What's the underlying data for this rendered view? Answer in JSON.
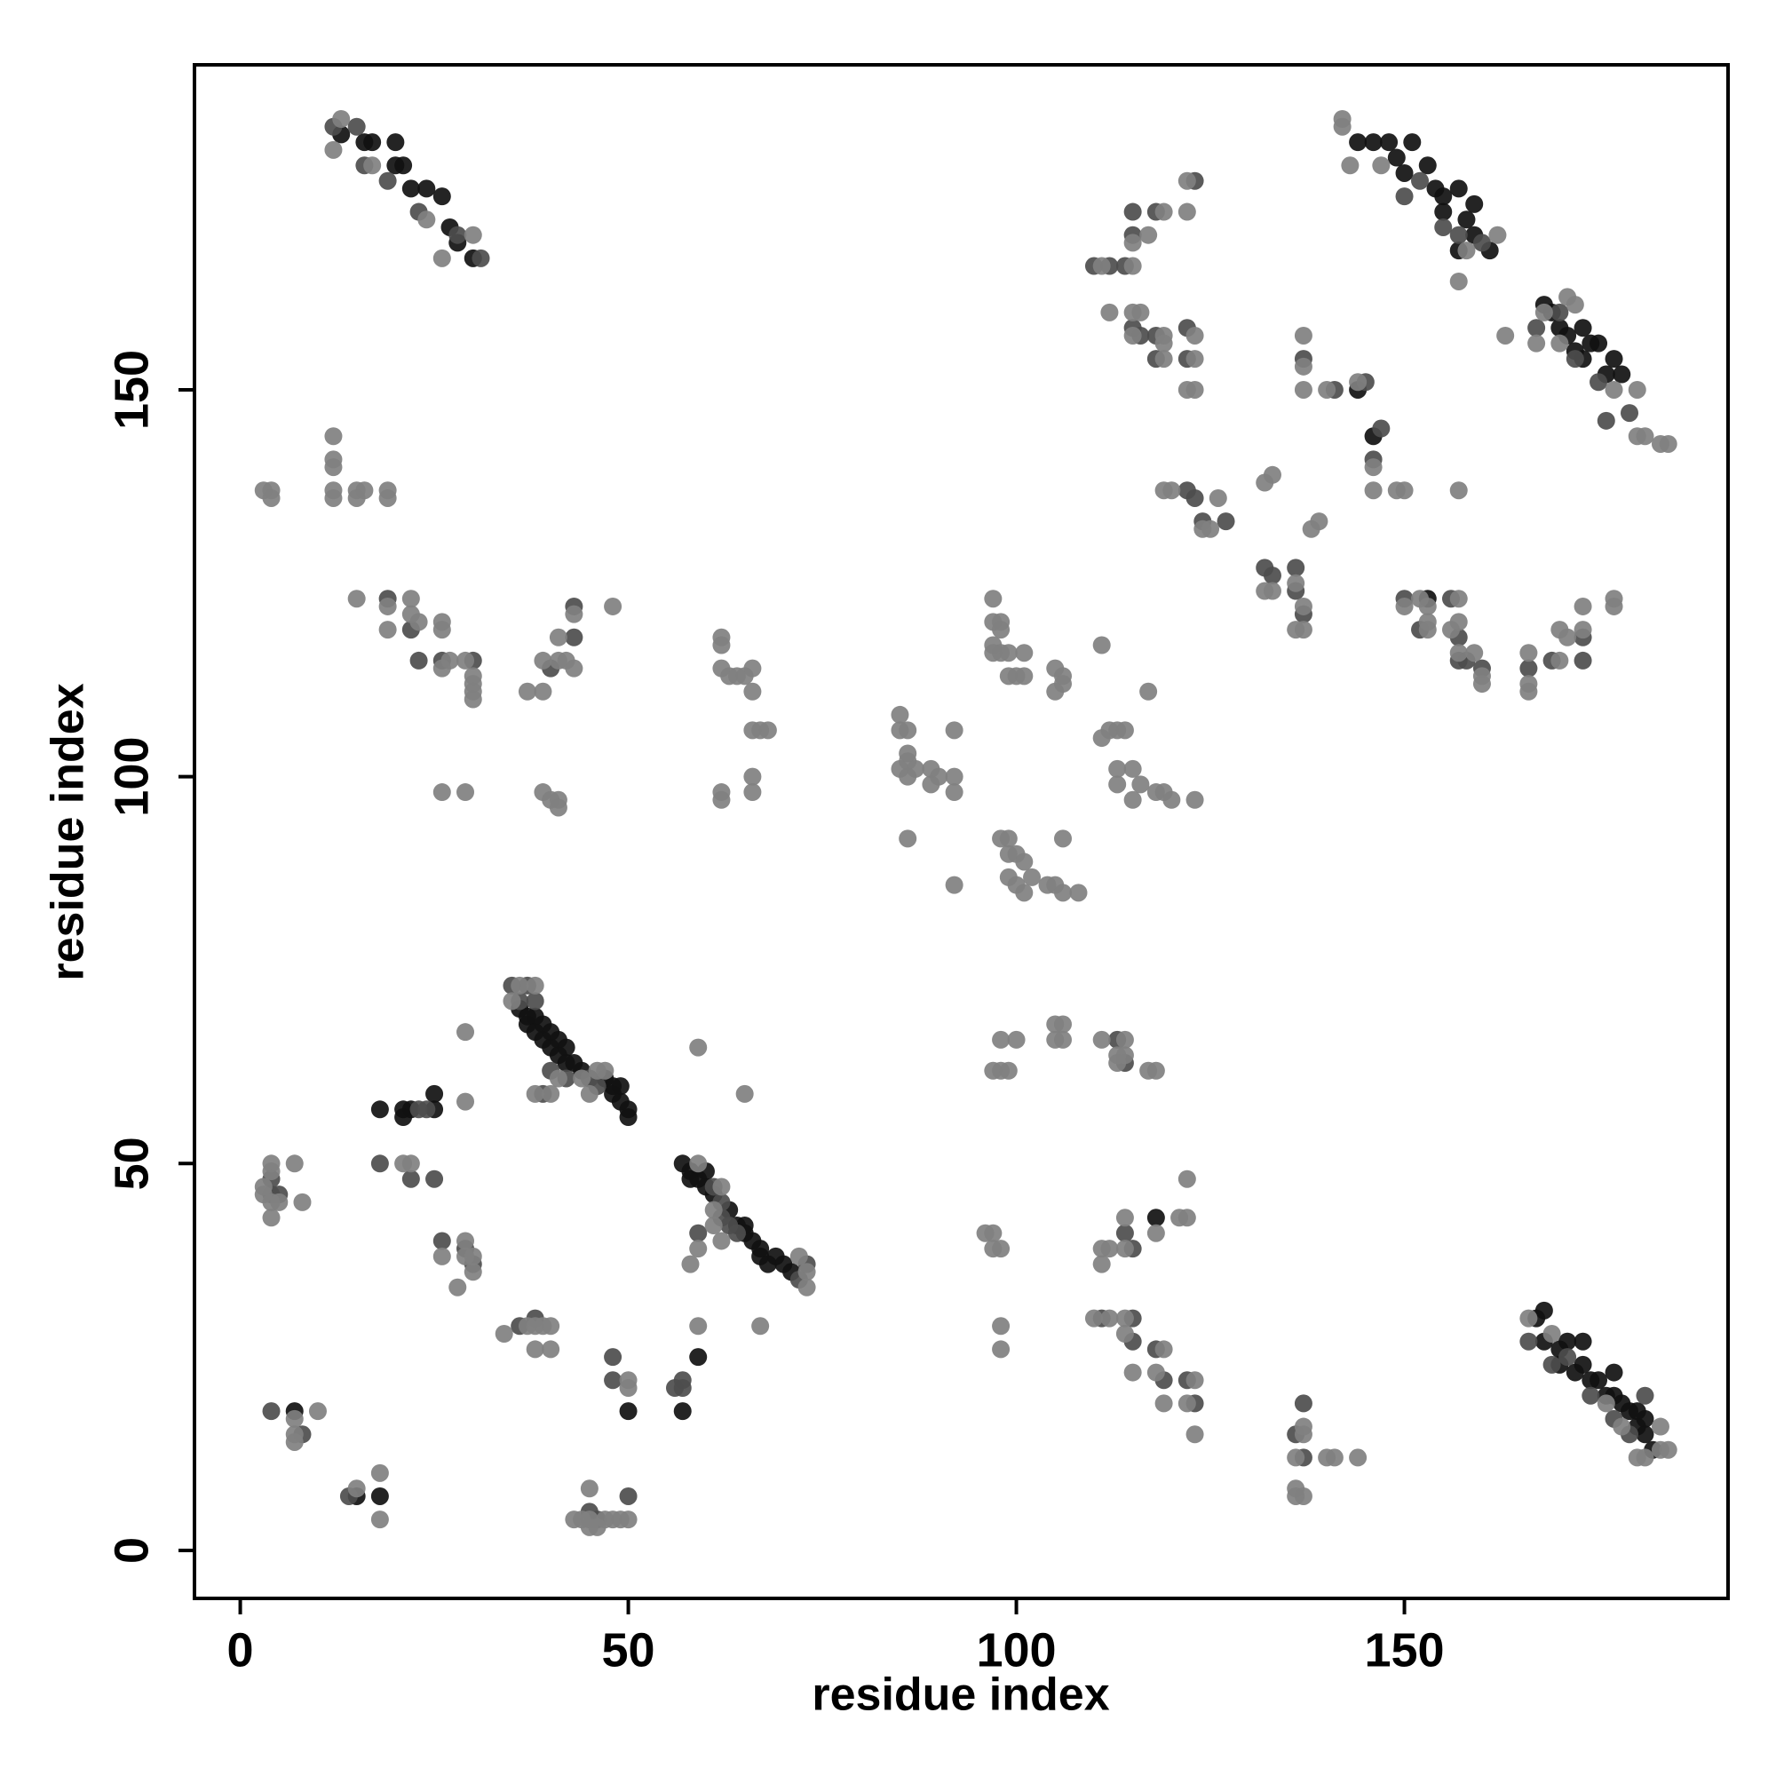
{
  "chart_data": {
    "type": "scatter",
    "xlabel": "residue index",
    "ylabel": "residue index",
    "xlim": [
      -5.9,
      191.7
    ],
    "ylim": [
      -6.2,
      192
    ],
    "xticks": [
      0,
      50,
      100,
      150
    ],
    "yticks": [
      0,
      50,
      100,
      150
    ],
    "series": [
      {
        "color": "#111111",
        "x": [
          13,
          16,
          17,
          20,
          20,
          21,
          22,
          24,
          26,
          27,
          28,
          30,
          36,
          37,
          37,
          38,
          38,
          39,
          39,
          40,
          40,
          41,
          41,
          42,
          42,
          43,
          44,
          47,
          48,
          48,
          49,
          49,
          50,
          50,
          18,
          21,
          22,
          21,
          25,
          25,
          57,
          58,
          58,
          59,
          60,
          60,
          61,
          63,
          64,
          65,
          65,
          66,
          67,
          67,
          68,
          69,
          70,
          71,
          7,
          18,
          15,
          57,
          59,
          50,
          144,
          146,
          148,
          150,
          149,
          151,
          153,
          154,
          155,
          157,
          155,
          158,
          159,
          159,
          161,
          157,
          168,
          169,
          170,
          171,
          172,
          173,
          174,
          175,
          177,
          178,
          176,
          173,
          144,
          146,
          153,
          118,
          167,
          168,
          168,
          170,
          171,
          170,
          172,
          173,
          173,
          174,
          175,
          176,
          177,
          178,
          179,
          180,
          181,
          181,
          182,
          177,
          180
        ],
        "y": [
          183,
          182,
          182,
          182,
          179,
          179,
          176,
          176,
          175,
          171,
          169,
          167,
          70,
          69,
          68,
          69,
          67,
          68,
          66,
          67,
          65,
          66,
          64,
          65,
          63,
          63,
          62,
          61,
          60,
          59,
          60,
          58,
          57,
          56,
          57,
          57,
          57,
          56,
          59,
          57,
          50,
          49,
          48,
          48,
          49,
          47,
          46,
          44,
          42,
          42,
          41,
          40,
          39,
          38,
          37,
          38,
          37,
          36,
          18,
          7,
          7,
          18,
          25,
          18,
          182,
          182,
          182,
          178,
          180,
          182,
          179,
          176,
          175,
          176,
          173,
          172,
          174,
          170,
          168,
          168,
          161,
          160,
          158,
          157,
          155,
          158,
          156,
          156,
          154,
          152,
          152,
          154,
          150,
          144,
          123,
          43,
          30,
          31,
          27,
          26,
          27,
          24,
          23,
          24,
          27,
          22,
          22,
          20,
          20,
          19,
          18,
          16,
          17,
          15,
          13,
          23,
          18
        ]
      },
      {
        "color": "#4d4d4d",
        "x": [
          12,
          15,
          16,
          19,
          23,
          28,
          31,
          19,
          22,
          23,
          26,
          30,
          43,
          43,
          40,
          35,
          37,
          36,
          38,
          39,
          40,
          42,
          45,
          46,
          24,
          23,
          22,
          25,
          18,
          61,
          62,
          62,
          63,
          64,
          59,
          72,
          73,
          4,
          5,
          4,
          4,
          8,
          14,
          45,
          46,
          48,
          48,
          50,
          57,
          56,
          57,
          26,
          29,
          30,
          36,
          38,
          110,
          112,
          114,
          115,
          115,
          118,
          115,
          116,
          118,
          118,
          122,
          122,
          123,
          141,
          137,
          145,
          150,
          152,
          155,
          157,
          160,
          167,
          170,
          172,
          175,
          179,
          176,
          122,
          123,
          124,
          127,
          132,
          133,
          136,
          136,
          137,
          147,
          146,
          150,
          152,
          156,
          157,
          157,
          158,
          160,
          166,
          169,
          173,
          173,
          113,
          114,
          114,
          115,
          111,
          115,
          115,
          118,
          119,
          122,
          123,
          136,
          137,
          137,
          166,
          169,
          171,
          174,
          177,
          179,
          181
        ],
        "y": [
          184,
          184,
          179,
          177,
          173,
          170,
          167,
          123,
          119,
          115,
          115,
          115,
          118,
          122,
          114,
          73,
          73,
          71,
          71,
          59,
          62,
          61,
          61,
          60,
          57,
          57,
          48,
          48,
          50,
          47,
          45,
          43,
          42,
          41,
          41,
          35,
          37,
          46,
          46,
          48,
          18,
          15,
          7,
          5,
          4,
          25,
          22,
          7,
          22,
          21,
          21,
          40,
          39,
          37,
          29,
          30,
          166,
          166,
          166,
          170,
          173,
          173,
          158,
          157,
          157,
          154,
          154,
          158,
          177,
          150,
          154,
          151,
          175,
          177,
          171,
          170,
          169,
          158,
          160,
          154,
          151,
          147,
          146,
          137,
          136,
          133,
          133,
          127,
          126,
          127,
          124,
          121,
          145,
          141,
          123,
          119,
          123,
          118,
          115,
          115,
          114,
          114,
          115,
          118,
          115,
          66,
          63,
          41,
          39,
          30,
          30,
          27,
          26,
          22,
          22,
          19,
          15,
          19,
          12,
          27,
          24,
          25,
          20,
          17,
          15,
          20
        ]
      },
      {
        "color": "#808080",
        "x": [
          13,
          12,
          17,
          24,
          26,
          30,
          3,
          4,
          4,
          12,
          12,
          12,
          12,
          12,
          15,
          15,
          16,
          19,
          19,
          15,
          19,
          19,
          22,
          22,
          23,
          26,
          26,
          26,
          27,
          29,
          30,
          30,
          30,
          30,
          37,
          39,
          39,
          41,
          41,
          42,
          43,
          43,
          48,
          26,
          29,
          39,
          40,
          41,
          41,
          62,
          62,
          62,
          63,
          64,
          65,
          66,
          66,
          66,
          67,
          68,
          66,
          66,
          62,
          62,
          85,
          85,
          86,
          86,
          85,
          86,
          86,
          87,
          89,
          89,
          90,
          92,
          92,
          92,
          86,
          92,
          97,
          97,
          98,
          98,
          97,
          97,
          98,
          99,
          101,
          99,
          100,
          101,
          105,
          106,
          106,
          105,
          111,
          111,
          112,
          113,
          114,
          113,
          113,
          115,
          116,
          115,
          117,
          118,
          119,
          120,
          123,
          98,
          99,
          99,
          100,
          101,
          99,
          100,
          101,
          102,
          104,
          105,
          106,
          106,
          108,
          36,
          38,
          35,
          41,
          44,
          46,
          47,
          45,
          38,
          40,
          59,
          65,
          29,
          29,
          21,
          22,
          59,
          62,
          61,
          61,
          62,
          59,
          58,
          73,
          73,
          72,
          4,
          4,
          3,
          3,
          5,
          4,
          4,
          7,
          8,
          26,
          29,
          29,
          30,
          30,
          28,
          34,
          37,
          38,
          39,
          40,
          38,
          40,
          50,
          50,
          59,
          67,
          7,
          7,
          7,
          10,
          15,
          18,
          18,
          43,
          44,
          45,
          45,
          45,
          46,
          47,
          48,
          49,
          50,
          142,
          142,
          143,
          147,
          162,
          158,
          157,
          163,
          167,
          168,
          171,
          172,
          170,
          177,
          180,
          180,
          181,
          183,
          184,
          111,
          115,
          115,
          119,
          117,
          122,
          122,
          112,
          115,
          116,
          115,
          119,
          119,
          123,
          123,
          122,
          123,
          119,
          137,
          137,
          137,
          140,
          144,
          146,
          146,
          149,
          150,
          157,
          119,
          120,
          125,
          126,
          124,
          132,
          133,
          138,
          139,
          132,
          133,
          136,
          137,
          137,
          136,
          150,
          153,
          152,
          153,
          153,
          157,
          156,
          157,
          157,
          159,
          160,
          160,
          166,
          166,
          166,
          170,
          170,
          171,
          173,
          173,
          177,
          177,
          98,
          100,
          97,
          98,
          99,
          105,
          106,
          105,
          106,
          111,
          114,
          113,
          113,
          114,
          117,
          118,
          96,
          97,
          97,
          98,
          98,
          98,
          122,
          114,
          118,
          121,
          122,
          111,
          111,
          112,
          114,
          110,
          112,
          114,
          114,
          115,
          119,
          118,
          119,
          122,
          123,
          123,
          137,
          137,
          136,
          140,
          141,
          144,
          136,
          137,
          136,
          166,
          169,
          176,
          178,
          183,
          181,
          183,
          184,
          180
        ],
        "y": [
          185,
          181,
          179,
          172,
          167,
          170,
          137,
          137,
          136,
          144,
          141,
          140,
          137,
          136,
          137,
          136,
          137,
          137,
          136,
          123,
          122,
          119,
          123,
          121,
          120,
          120,
          119,
          114,
          115,
          115,
          113,
          112,
          111,
          110,
          111,
          115,
          111,
          115,
          118,
          115,
          121,
          114,
          122,
          98,
          98,
          98,
          97,
          97,
          96,
          118,
          117,
          114,
          113,
          113,
          113,
          114,
          111,
          106,
          106,
          106,
          100,
          98,
          98,
          97,
          108,
          106,
          106,
          103,
          101,
          102,
          100,
          101,
          101,
          99,
          100,
          106,
          100,
          98,
          92,
          86,
          123,
          120,
          120,
          119,
          117,
          116,
          116,
          116,
          116,
          113,
          113,
          113,
          114,
          113,
          112,
          111,
          117,
          105,
          106,
          106,
          106,
          101,
          99,
          101,
          99,
          97,
          111,
          98,
          98,
          97,
          97,
          92,
          92,
          90,
          90,
          89,
          87,
          86,
          85,
          87,
          86,
          86,
          92,
          85,
          85,
          73,
          73,
          71,
          61,
          61,
          62,
          62,
          59,
          59,
          59,
          65,
          59,
          67,
          58,
          50,
          50,
          50,
          47,
          44,
          42,
          40,
          39,
          37,
          36,
          34,
          38,
          50,
          49,
          47,
          46,
          45,
          45,
          43,
          50,
          45,
          38,
          40,
          38,
          38,
          36,
          34,
          28,
          29,
          29,
          29,
          29,
          26,
          26,
          22,
          21,
          29,
          29,
          17,
          15,
          14,
          18,
          8,
          10,
          4,
          4,
          4,
          8,
          4,
          3,
          3,
          4,
          4,
          4,
          4,
          185,
          184,
          179,
          179,
          170,
          168,
          164,
          157,
          156,
          160,
          162,
          161,
          156,
          150,
          150,
          144,
          144,
          143,
          143,
          166,
          166,
          169,
          173,
          170,
          177,
          173,
          160,
          160,
          160,
          157,
          157,
          154,
          157,
          154,
          150,
          150,
          156,
          157,
          153,
          150,
          150,
          151,
          140,
          137,
          137,
          137,
          137,
          137,
          137,
          132,
          136,
          132,
          138,
          139,
          132,
          133,
          124,
          124,
          125,
          122,
          119,
          119,
          122,
          122,
          123,
          119,
          120,
          123,
          119,
          120,
          116,
          116,
          113,
          112,
          116,
          112,
          111,
          115,
          119,
          118,
          119,
          122,
          122,
          123,
          66,
          66,
          62,
          62,
          62,
          68,
          68,
          66,
          66,
          66,
          66,
          64,
          63,
          64,
          62,
          62,
          41,
          41,
          39,
          39,
          29,
          26,
          48,
          43,
          41,
          43,
          43,
          39,
          37,
          39,
          39,
          30,
          30,
          30,
          28,
          23,
          26,
          23,
          19,
          19,
          22,
          15,
          15,
          16,
          12,
          12,
          12,
          12,
          8,
          7,
          7,
          30,
          28,
          19,
          16,
          16,
          12,
          13,
          13,
          12
        ]
      }
    ]
  }
}
